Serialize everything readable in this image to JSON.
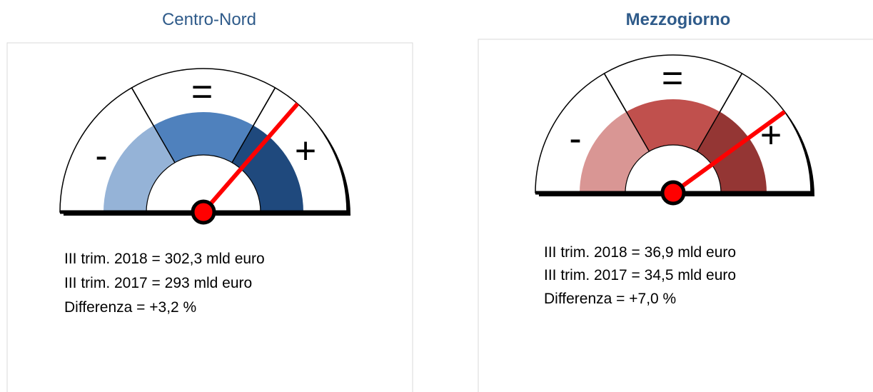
{
  "panels": [
    {
      "title": "Centro-Nord",
      "symbols": [
        "-",
        "=",
        "+"
      ],
      "lines": [
        "III trim. 2018 = 302,3 mld euro",
        "III trim. 2017 = 293 mld euro",
        "Differenza = +3,2 %"
      ]
    },
    {
      "title": "Mezzogiorno",
      "symbols": [
        "-",
        "=",
        "+"
      ],
      "lines": [
        "III trim. 2018 = 36,9 mld euro",
        "III trim. 2017 = 34,5 mld euro",
        "Differenza = +7,0 %"
      ]
    }
  ]
}
